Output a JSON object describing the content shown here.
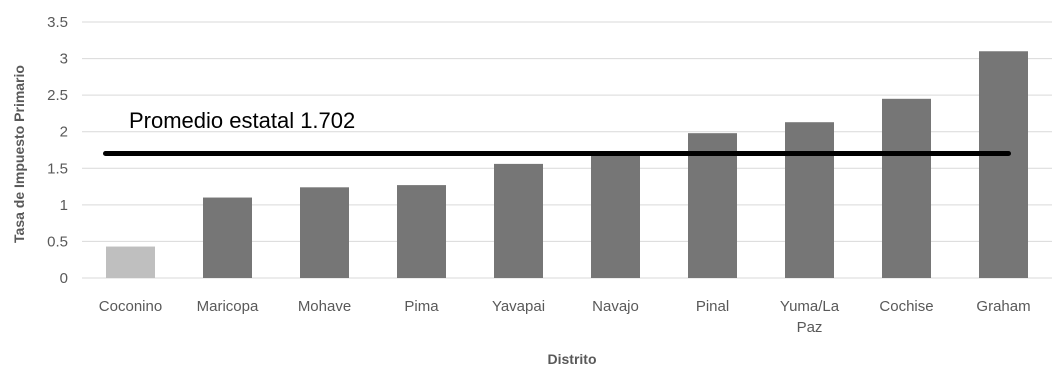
{
  "chart_data": {
    "type": "bar",
    "categories": [
      "Coconino",
      "Maricopa",
      "Mohave",
      "Pima",
      "Yavapai",
      "Navajo",
      "Pinal",
      "Yuma/La Paz",
      "Cochise",
      "Graham"
    ],
    "category_lines": [
      [
        "Coconino"
      ],
      [
        "Maricopa"
      ],
      [
        "Mohave"
      ],
      [
        "Pima"
      ],
      [
        "Yavapai"
      ],
      [
        "Navajo"
      ],
      [
        "Pinal"
      ],
      [
        "Yuma/La",
        "Paz"
      ],
      [
        "Cochise"
      ],
      [
        "Graham"
      ]
    ],
    "values": [
      0.43,
      1.1,
      1.24,
      1.27,
      1.56,
      1.72,
      1.98,
      2.13,
      2.45,
      3.1
    ],
    "bar_colors": [
      "#BFBFBF",
      "#767676",
      "#767676",
      "#767676",
      "#767676",
      "#767676",
      "#767676",
      "#767676",
      "#767676",
      "#767676"
    ],
    "xlabel": "Distrito",
    "ylabel": "Tasa de Impuesto Primario",
    "ylim": [
      0,
      3.5
    ],
    "yticks": [
      "0",
      "0.5",
      "1",
      "1.5",
      "2",
      "2.5",
      "3",
      "3.5"
    ],
    "grid": true,
    "reference_line": {
      "value": 1.702,
      "label": "Promedio estatal 1.702",
      "color": "#000000"
    },
    "colors": {
      "grid": "#D9D9D9",
      "tick_text": "#595959"
    }
  }
}
